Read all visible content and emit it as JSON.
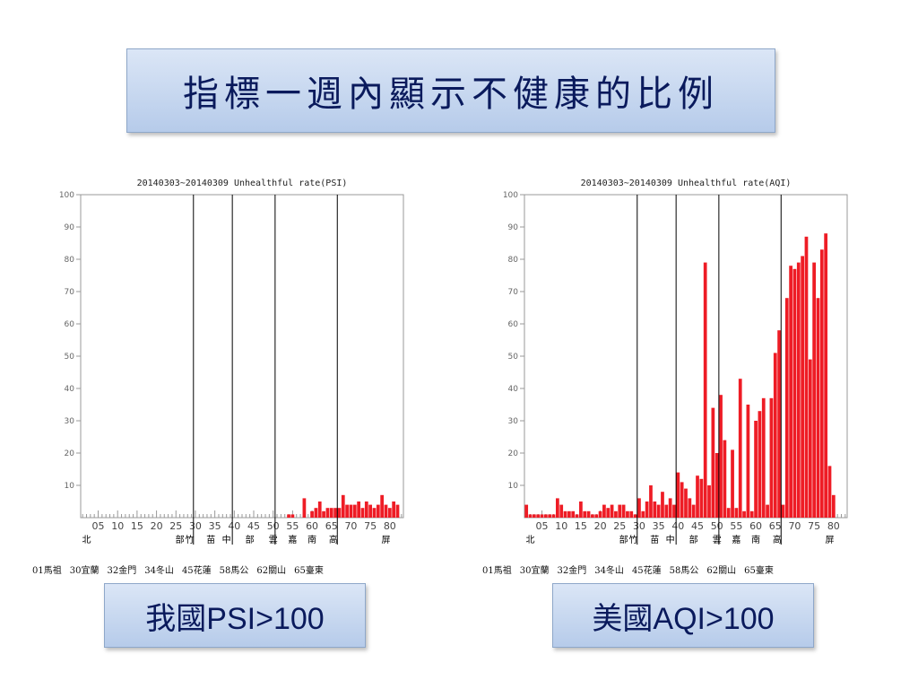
{
  "slide": {
    "title": "指標一週內顯示不健康的比例",
    "left_caption": "我國PSI>100",
    "right_caption": "美國AQI>100"
  },
  "colors": {
    "bar": "#ee1c25",
    "axis": "#999999",
    "divider": "#000000",
    "title_text": "#0a1a5c"
  },
  "chart_data": [
    {
      "id": "psi",
      "type": "bar",
      "title": "20140303~20140309 Unhealthful rate(PSI)",
      "ylim": [
        0,
        100
      ],
      "y_ticks": [
        10,
        20,
        30,
        40,
        50,
        60,
        70,
        80,
        90,
        100
      ],
      "x_range": [
        1,
        83
      ],
      "x_tick_labels": [
        "05",
        "10",
        "15",
        "20",
        "25",
        "30",
        "35",
        "40",
        "45",
        "50",
        "55",
        "60",
        "65",
        "70",
        "75",
        "80"
      ],
      "region_labels": [
        {
          "text": "北",
          "station": 2
        },
        {
          "text": "部",
          "station": 26
        },
        {
          "text": "竹",
          "station": 28.5
        },
        {
          "text": "苗",
          "station": 34
        },
        {
          "text": "中",
          "station": 38
        },
        {
          "text": "部",
          "station": 44
        },
        {
          "text": "雲",
          "station": 50
        },
        {
          "text": "嘉",
          "station": 55
        },
        {
          "text": "南",
          "station": 60
        },
        {
          "text": "高",
          "station": 65.5
        },
        {
          "text": "屏",
          "station": 79
        }
      ],
      "dividers": [
        29.5,
        39.5,
        50.5,
        66.5
      ],
      "bars": [
        {
          "x": 54,
          "y": 1
        },
        {
          "x": 55,
          "y": 1
        },
        {
          "x": 58,
          "y": 6
        },
        {
          "x": 60,
          "y": 2
        },
        {
          "x": 61,
          "y": 3
        },
        {
          "x": 62,
          "y": 5
        },
        {
          "x": 63,
          "y": 2
        },
        {
          "x": 64,
          "y": 3
        },
        {
          "x": 65,
          "y": 3
        },
        {
          "x": 66,
          "y": 3
        },
        {
          "x": 67,
          "y": 3
        },
        {
          "x": 68,
          "y": 7
        },
        {
          "x": 69,
          "y": 4
        },
        {
          "x": 70,
          "y": 4
        },
        {
          "x": 71,
          "y": 4
        },
        {
          "x": 72,
          "y": 5
        },
        {
          "x": 73,
          "y": 3
        },
        {
          "x": 74,
          "y": 5
        },
        {
          "x": 75,
          "y": 4
        },
        {
          "x": 76,
          "y": 3
        },
        {
          "x": 77,
          "y": 4
        },
        {
          "x": 78,
          "y": 7
        },
        {
          "x": 79,
          "y": 4
        },
        {
          "x": 80,
          "y": 3
        },
        {
          "x": 81,
          "y": 5
        },
        {
          "x": 82,
          "y": 4
        }
      ],
      "station_list": [
        "01馬祖",
        "30宜蘭",
        "32金門",
        "34冬山",
        "45花蓮",
        "58馬公",
        "62關山",
        "65臺東"
      ]
    },
    {
      "id": "aqi",
      "type": "bar",
      "title": "20140303~20140309 Unhealthful rate(AQI)",
      "ylim": [
        0,
        100
      ],
      "y_ticks": [
        10,
        20,
        30,
        40,
        50,
        60,
        70,
        80,
        90,
        100
      ],
      "x_range": [
        1,
        83
      ],
      "x_tick_labels": [
        "05",
        "10",
        "15",
        "20",
        "25",
        "30",
        "35",
        "40",
        "45",
        "50",
        "55",
        "60",
        "65",
        "70",
        "75",
        "80"
      ],
      "region_labels": [
        {
          "text": "北",
          "station": 2
        },
        {
          "text": "部",
          "station": 26
        },
        {
          "text": "竹",
          "station": 28.5
        },
        {
          "text": "苗",
          "station": 34
        },
        {
          "text": "中",
          "station": 38
        },
        {
          "text": "部",
          "station": 44
        },
        {
          "text": "雲",
          "station": 50
        },
        {
          "text": "嘉",
          "station": 55
        },
        {
          "text": "南",
          "station": 60
        },
        {
          "text": "高",
          "station": 65.5
        },
        {
          "text": "屏",
          "station": 79
        }
      ],
      "dividers": [
        29.5,
        39.5,
        50.5,
        66.5
      ],
      "bars": [
        {
          "x": 1,
          "y": 4
        },
        {
          "x": 2,
          "y": 1
        },
        {
          "x": 3,
          "y": 1
        },
        {
          "x": 4,
          "y": 1
        },
        {
          "x": 5,
          "y": 1
        },
        {
          "x": 6,
          "y": 1
        },
        {
          "x": 7,
          "y": 1
        },
        {
          "x": 8,
          "y": 1
        },
        {
          "x": 9,
          "y": 6
        },
        {
          "x": 10,
          "y": 4
        },
        {
          "x": 11,
          "y": 2
        },
        {
          "x": 12,
          "y": 2
        },
        {
          "x": 13,
          "y": 2
        },
        {
          "x": 14,
          "y": 1
        },
        {
          "x": 15,
          "y": 5
        },
        {
          "x": 16,
          "y": 2
        },
        {
          "x": 17,
          "y": 2
        },
        {
          "x": 18,
          "y": 1
        },
        {
          "x": 19,
          "y": 1
        },
        {
          "x": 20,
          "y": 2
        },
        {
          "x": 21,
          "y": 4
        },
        {
          "x": 22,
          "y": 3
        },
        {
          "x": 23,
          "y": 4
        },
        {
          "x": 24,
          "y": 2
        },
        {
          "x": 25,
          "y": 4
        },
        {
          "x": 26,
          "y": 4
        },
        {
          "x": 27,
          "y": 2
        },
        {
          "x": 28,
          "y": 2
        },
        {
          "x": 29,
          "y": 1
        },
        {
          "x": 30,
          "y": 6
        },
        {
          "x": 31,
          "y": 2
        },
        {
          "x": 32,
          "y": 5
        },
        {
          "x": 33,
          "y": 10
        },
        {
          "x": 34,
          "y": 5
        },
        {
          "x": 35,
          "y": 4
        },
        {
          "x": 36,
          "y": 8
        },
        {
          "x": 37,
          "y": 4
        },
        {
          "x": 38,
          "y": 6
        },
        {
          "x": 39,
          "y": 4
        },
        {
          "x": 40,
          "y": 14
        },
        {
          "x": 41,
          "y": 11
        },
        {
          "x": 42,
          "y": 9
        },
        {
          "x": 43,
          "y": 6
        },
        {
          "x": 44,
          "y": 4
        },
        {
          "x": 45,
          "y": 13
        },
        {
          "x": 46,
          "y": 12
        },
        {
          "x": 47,
          "y": 79
        },
        {
          "x": 48,
          "y": 10
        },
        {
          "x": 49,
          "y": 34
        },
        {
          "x": 50,
          "y": 20
        },
        {
          "x": 51,
          "y": 38
        },
        {
          "x": 52,
          "y": 24
        },
        {
          "x": 53,
          "y": 3
        },
        {
          "x": 54,
          "y": 21
        },
        {
          "x": 55,
          "y": 3
        },
        {
          "x": 56,
          "y": 43
        },
        {
          "x": 57,
          "y": 2
        },
        {
          "x": 58,
          "y": 35
        },
        {
          "x": 59,
          "y": 2
        },
        {
          "x": 60,
          "y": 30
        },
        {
          "x": 61,
          "y": 33
        },
        {
          "x": 62,
          "y": 37
        },
        {
          "x": 63,
          "y": 4
        },
        {
          "x": 64,
          "y": 37
        },
        {
          "x": 65,
          "y": 51
        },
        {
          "x": 66,
          "y": 58
        },
        {
          "x": 67,
          "y": 4
        },
        {
          "x": 68,
          "y": 68
        },
        {
          "x": 69,
          "y": 78
        },
        {
          "x": 70,
          "y": 77
        },
        {
          "x": 71,
          "y": 79
        },
        {
          "x": 72,
          "y": 81
        },
        {
          "x": 73,
          "y": 87
        },
        {
          "x": 74,
          "y": 49
        },
        {
          "x": 75,
          "y": 79
        },
        {
          "x": 76,
          "y": 68
        },
        {
          "x": 77,
          "y": 83
        },
        {
          "x": 78,
          "y": 88
        },
        {
          "x": 79,
          "y": 16
        },
        {
          "x": 80,
          "y": 7
        }
      ],
      "station_list": [
        "01馬祖",
        "30宜蘭",
        "32金門",
        "34冬山",
        "45花蓮",
        "58馬公",
        "62關山",
        "65臺東"
      ]
    }
  ]
}
